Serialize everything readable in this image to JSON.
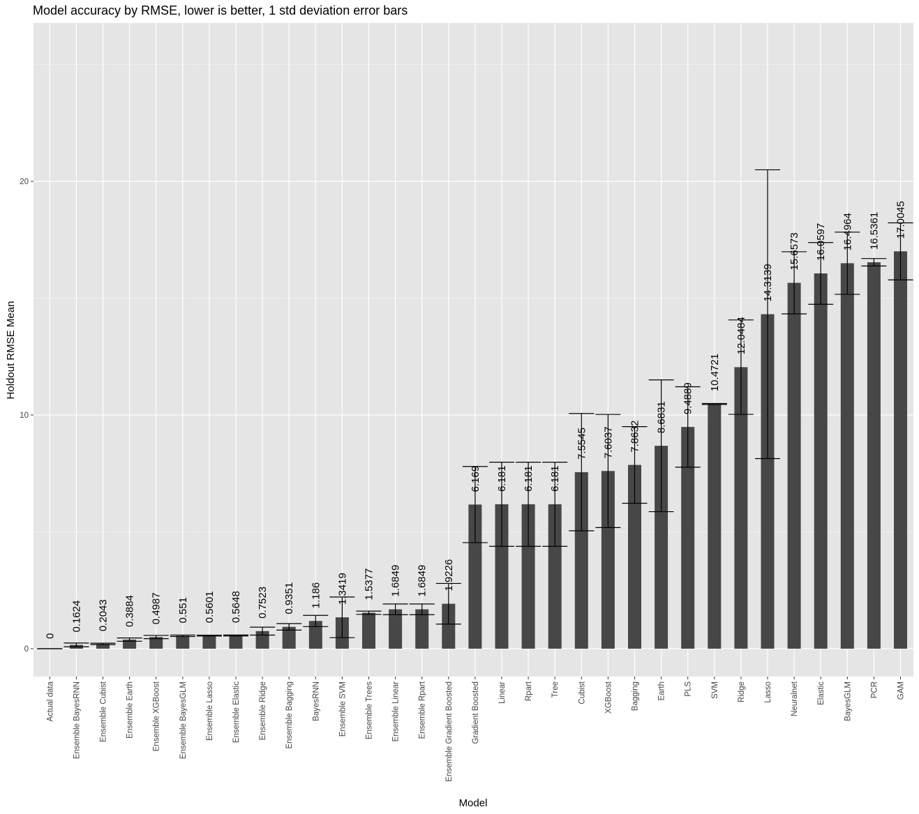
{
  "chart_data": {
    "type": "bar",
    "title": "Model accuracy by RMSE, lower is better, 1 std deviation error bars",
    "xlabel": "Model",
    "ylabel": "Holdout RMSE Mean",
    "ylim": [
      -1.2,
      26.8
    ],
    "yticks": [
      0,
      10,
      20
    ],
    "grid": true,
    "bar_color": "#474747",
    "panel_color": "#e5e5e5",
    "categories": [
      "Actual data",
      "Ensemble BayesRNN",
      "Ensemble Cubist",
      "Ensemble Earth",
      "Ensemble XGBoost",
      "Ensemble BayesGLM",
      "Ensemble Lasso",
      "Ensemble Elastic",
      "Ensemble Ridge",
      "Ensemble Bagging",
      "BayesRNN",
      "Ensemble SVM",
      "Ensemble Trees",
      "Ensemble Linear",
      "Ensemble Rpart",
      "Ensemble Gradient Boosted",
      "Gradient Boosted",
      "Linear",
      "Rpart",
      "Tree",
      "Cubist",
      "XGBoost",
      "Bagging",
      "Earth",
      "PLS",
      "SVM",
      "Ridge",
      "Lasso",
      "Neuralnet",
      "Elastic",
      "BayesGLM",
      "PCR",
      "GAM"
    ],
    "values": [
      0,
      0.1624,
      0.2043,
      0.3884,
      0.4987,
      0.551,
      0.5601,
      0.5648,
      0.7523,
      0.9351,
      1.186,
      1.3419,
      1.5377,
      1.6849,
      1.6849,
      1.9226,
      6.169,
      6.181,
      6.181,
      6.181,
      7.5545,
      7.6037,
      7.8632,
      8.6831,
      9.4889,
      10.4721,
      12.0484,
      14.3139,
      15.6573,
      16.0597,
      16.4964,
      16.5361,
      17.0045
    ],
    "value_labels": [
      "0",
      "0.1624",
      "0.2043",
      "0.3884",
      "0.4987",
      "0.551",
      "0.5601",
      "0.5648",
      "0.7523",
      "0.9351",
      "1.186",
      "1.3419",
      "1.5377",
      "1.6849",
      "1.6849",
      "1.9226",
      "6.169",
      "6.181",
      "6.181",
      "6.181",
      "7.5545",
      "7.6037",
      "7.8632",
      "8.6831",
      "9.4889",
      "10.4721",
      "12.0484",
      "14.3139",
      "15.6573",
      "16.0597",
      "16.4964",
      "16.5361",
      "17.0045"
    ],
    "error_sd": [
      0,
      0.08,
      0.03,
      0.07,
      0.07,
      0.03,
      0.02,
      0.02,
      0.17,
      0.14,
      0.24,
      0.87,
      0.07,
      0.23,
      0.23,
      0.87,
      1.63,
      1.8,
      1.8,
      1.8,
      2.51,
      2.42,
      1.64,
      2.82,
      1.72,
      0.02,
      2.02,
      6.18,
      1.33,
      1.32,
      1.33,
      0.16,
      1.22
    ]
  }
}
